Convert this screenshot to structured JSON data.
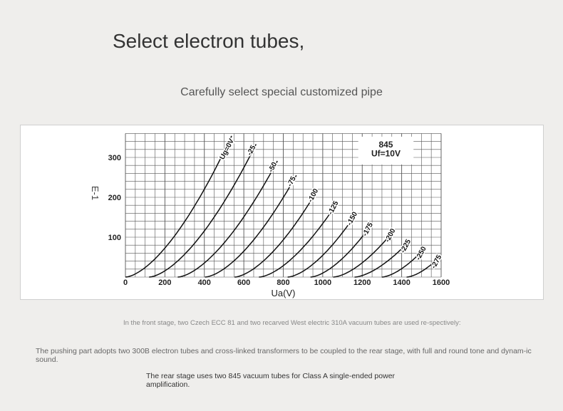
{
  "header": {
    "title": "Select electron tubes,",
    "subtitle": "Carefully select special customized pipe"
  },
  "chart_data": {
    "type": "line",
    "title": "845",
    "subtitle": "Uf=10V",
    "side_label": "E-1",
    "xlabel": "Ua(V)",
    "ylabel": "",
    "xlim": [
      0,
      1600
    ],
    "ylim": [
      0,
      360
    ],
    "xticks": [
      0,
      200,
      400,
      600,
      800,
      1000,
      1200,
      1400,
      1600
    ],
    "yticks": [
      100,
      200,
      300
    ],
    "grid": true,
    "series": [
      {
        "name": "Ug=0V",
        "start_ua": 0,
        "end": [
          538,
          354
        ]
      },
      {
        "name": "-25",
        "start_ua": 120,
        "end": [
          662,
          333
        ]
      },
      {
        "name": "-50",
        "start_ua": 265,
        "end": [
          770,
          291
        ]
      },
      {
        "name": "-75",
        "start_ua": 403,
        "end": [
          866,
          255
        ]
      },
      {
        "name": "-100",
        "start_ua": 553,
        "end": [
          975,
          220
        ]
      },
      {
        "name": "-125",
        "start_ua": 677,
        "end": [
          1077,
          189
        ]
      },
      {
        "name": "-150",
        "start_ua": 822,
        "end": [
          1173,
          162
        ]
      },
      {
        "name": "-175",
        "start_ua": 938,
        "end": [
          1252,
          135
        ]
      },
      {
        "name": "-200",
        "start_ua": 1053,
        "end": [
          1366,
          120
        ]
      },
      {
        "name": "-225",
        "start_ua": 1161,
        "end": [
          1444,
          93
        ]
      },
      {
        "name": "-250",
        "start_ua": 1299,
        "end": [
          1522,
          75
        ]
      },
      {
        "name": "-275",
        "start_ua": 1425,
        "end": [
          1600,
          54
        ]
      }
    ]
  },
  "paragraphs": {
    "front": "In the front stage, two Czech ECC 81 and two recarved West electric 310A vacuum tubes are used re-spectively:",
    "push": "The pushing part adopts two 300B electron tubes and cross-linked transformers to be coupled to the rear stage, with full and round tone and dynam-ic sound.",
    "rear": "The rear stage uses two 845 vacuum tubes for Class A single-ended power amplification."
  }
}
